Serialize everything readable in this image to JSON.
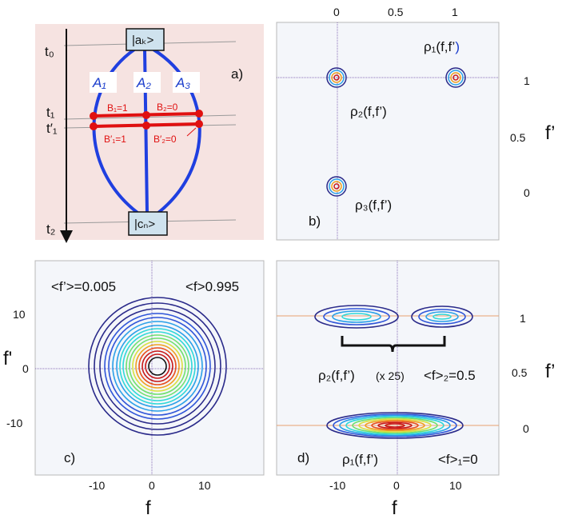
{
  "panel_a": {
    "letter": "a)",
    "times": {
      "t0": "t₀",
      "t1": "t₁",
      "t1p": "t′₁",
      "t2": "t₂"
    },
    "top_state": "|aₖ>",
    "bottom_state": "|cₙ>",
    "paths": {
      "a1": "A₁",
      "a2": "A₂",
      "a3": "A₃"
    },
    "records": {
      "b1": "B₁=1",
      "b2": "B₂=0",
      "b1p": "B′₁=1",
      "b2p": "B′₂=0"
    }
  },
  "panel_b": {
    "letter": "b)",
    "x_ticks": [
      "0",
      "0.5",
      "1"
    ],
    "y_ticks": [
      "1",
      "0.5",
      "0"
    ],
    "y_axis_label": "f’",
    "rho1": "ρ₁(f,f’",
    "rho1_close": ")",
    "rho2": "ρ₂(f,f’)",
    "rho3": "ρ₃(f,f’)"
  },
  "panel_c": {
    "letter": "c)",
    "x_ticks": [
      "-10",
      "0",
      "10"
    ],
    "y_ticks": [
      "10",
      "0",
      "-10"
    ],
    "x_axis_label": "f",
    "y_axis_label": "f'",
    "mean_fp": "<f’>=0.005",
    "mean_f": "<f>0.995"
  },
  "panel_d": {
    "letter": "d)",
    "x_ticks": [
      "-10",
      "0",
      "10"
    ],
    "y_ticks": [
      "1",
      "0.5",
      "0"
    ],
    "x_axis_label": "f",
    "y_axis_label": "f’",
    "rho2": "ρ₂(f,f’)",
    "rho2_scale": "(x 25)",
    "mean2": "<f>₂=0.5",
    "rho1": "ρ₁(f,f’)",
    "mean1": "<f>₁=0"
  },
  "colors": {
    "panel_a_bg": "#f6e3e1",
    "path_blue": "#1f3fe0",
    "record_red": "#e01010",
    "plot_bg": "#f4f6fa",
    "contour_ramp": [
      "#2a2a8a",
      "#2f55d8",
      "#2aa0e8",
      "#30d8d8",
      "#70e070",
      "#d8e040",
      "#f0a020",
      "#e85020",
      "#c81818"
    ]
  }
}
